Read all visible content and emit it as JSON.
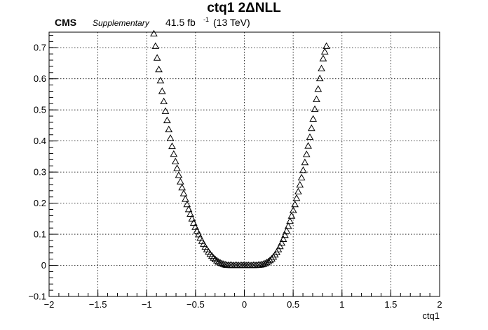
{
  "header": {
    "title": "ctq1 2ΔNLL",
    "cms_label": "CMS",
    "supplementary_label": "Supplementary",
    "lumi_value": "41.5 fb",
    "lumi_exponent": "-1",
    "energy": "(13 TeV)"
  },
  "chart_data": {
    "type": "scatter",
    "title": "ctq1 2ΔNLL",
    "xlabel": "ctq1",
    "ylabel": "",
    "xlim": [
      -2,
      2
    ],
    "ylim": [
      -0.1,
      0.75
    ],
    "grid": true,
    "marker": "open-triangle",
    "x_ticks": [
      -2,
      -1.5,
      -1,
      -0.5,
      0,
      0.5,
      1,
      1.5,
      2
    ],
    "x_tick_labels": [
      "−2",
      "−1.5",
      "−1",
      "−0.5",
      "0",
      "0.5",
      "1",
      "1.5",
      "2"
    ],
    "y_ticks": [
      -0.1,
      0,
      0.1,
      0.2,
      0.3,
      0.4,
      0.5,
      0.6,
      0.7
    ],
    "y_tick_labels": [
      "−0.1",
      "0",
      "0.1",
      "0.2",
      "0.3",
      "0.4",
      "0.5",
      "0.6",
      "0.7"
    ],
    "series": [
      {
        "x": [
          -0.927,
          -0.91,
          -0.893,
          -0.876,
          -0.859,
          -0.842,
          -0.825,
          -0.808,
          -0.791,
          -0.774,
          -0.757,
          -0.74,
          -0.723,
          -0.706,
          -0.689,
          -0.672,
          -0.655,
          -0.638,
          -0.621,
          -0.604,
          -0.587,
          -0.57,
          -0.553,
          -0.536,
          -0.519,
          -0.502,
          -0.485,
          -0.468,
          -0.451,
          -0.434,
          -0.417,
          -0.4,
          -0.383,
          -0.366,
          -0.349,
          -0.332,
          -0.315,
          -0.298,
          -0.281,
          -0.264,
          -0.247,
          -0.23,
          -0.213,
          -0.196,
          -0.179,
          -0.162,
          -0.145,
          -0.128,
          -0.111,
          -0.094,
          -0.077,
          -0.06,
          -0.043,
          -0.026,
          -0.009,
          0.008,
          0.025,
          0.042,
          0.059,
          0.076,
          0.093,
          0.11,
          0.127,
          0.144,
          0.161,
          0.178,
          0.195,
          0.212,
          0.229,
          0.246,
          0.263,
          0.28,
          0.297,
          0.314,
          0.331,
          0.348,
          0.365,
          0.382,
          0.399,
          0.416,
          0.433,
          0.45,
          0.467,
          0.484,
          0.501,
          0.518,
          0.535,
          0.552,
          0.569,
          0.586,
          0.603,
          0.62,
          0.637,
          0.654,
          0.671,
          0.688,
          0.705,
          0.722,
          0.739,
          0.756,
          0.773,
          0.79,
          0.807,
          0.824,
          0.841
        ],
        "y": [
          0.745,
          0.705,
          0.667,
          0.63,
          0.594,
          0.56,
          0.527,
          0.496,
          0.466,
          0.437,
          0.409,
          0.383,
          0.358,
          0.334,
          0.312,
          0.29,
          0.269,
          0.25,
          0.231,
          0.213,
          0.196,
          0.18,
          0.165,
          0.15,
          0.136,
          0.123,
          0.111,
          0.099,
          0.088,
          0.078,
          0.068,
          0.059,
          0.051,
          0.043,
          0.036,
          0.03,
          0.024,
          0.019,
          0.015,
          0.011,
          0.008,
          0.006,
          0.004,
          0.002,
          0.001,
          0.0005,
          0.0003,
          0.0002,
          0.0001,
          0.0001,
          0.0,
          0.0,
          0.0,
          0.0,
          0.0,
          0.0,
          0.0,
          0.0,
          0.0,
          0.0001,
          0.0002,
          0.0004,
          0.0007,
          0.001,
          0.0015,
          0.0025,
          0.004,
          0.006,
          0.009,
          0.012,
          0.016,
          0.021,
          0.027,
          0.034,
          0.042,
          0.051,
          0.061,
          0.072,
          0.084,
          0.097,
          0.111,
          0.126,
          0.142,
          0.159,
          0.177,
          0.196,
          0.216,
          0.237,
          0.259,
          0.282,
          0.306,
          0.331,
          0.357,
          0.384,
          0.412,
          0.441,
          0.471,
          0.502,
          0.534,
          0.567,
          0.601,
          0.633,
          0.665,
          0.687,
          0.705
        ]
      }
    ]
  }
}
